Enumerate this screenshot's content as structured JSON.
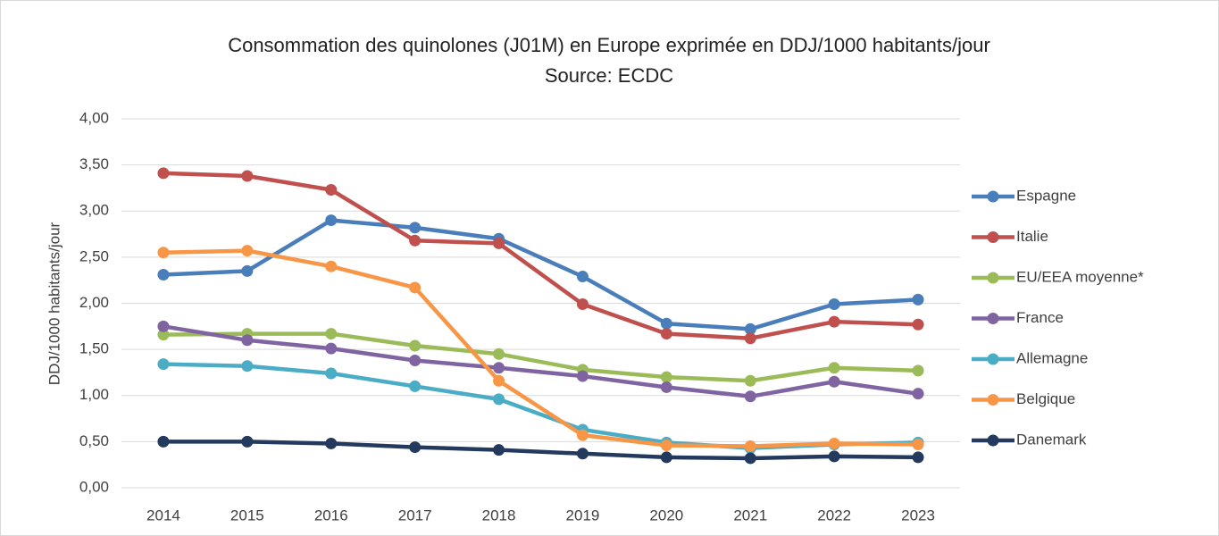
{
  "chart_data": {
    "type": "line",
    "title": "Consommation des quinolones (J01M) en Europe exprimée en DDJ/1000 habitants/jour",
    "subtitle": "Source: ECDC",
    "y_label": "DDJ/1000 habitants/jour",
    "categories": [
      "2014",
      "2015",
      "2016",
      "2017",
      "2018",
      "2019",
      "2020",
      "2021",
      "2022",
      "2023"
    ],
    "series": [
      {
        "name": "Espagne",
        "color": "#4a7ebb",
        "values": [
          2.31,
          2.35,
          2.9,
          2.82,
          2.7,
          2.29,
          1.78,
          1.72,
          1.99,
          2.04
        ]
      },
      {
        "name": "Italie",
        "color": "#c0504d",
        "values": [
          3.41,
          3.38,
          3.23,
          2.68,
          2.65,
          1.99,
          1.67,
          1.62,
          1.8,
          1.77
        ]
      },
      {
        "name": "EU/EEA moyenne*",
        "color": "#9bbb59",
        "values": [
          1.66,
          1.67,
          1.67,
          1.54,
          1.45,
          1.28,
          1.2,
          1.16,
          1.3,
          1.27
        ]
      },
      {
        "name": "France",
        "color": "#8064a2",
        "values": [
          1.75,
          1.6,
          1.51,
          1.38,
          1.3,
          1.21,
          1.09,
          0.99,
          1.15,
          1.02
        ]
      },
      {
        "name": "Allemagne",
        "color": "#4bacc6",
        "values": [
          1.34,
          1.32,
          1.24,
          1.1,
          0.96,
          0.63,
          0.49,
          0.43,
          0.47,
          0.49
        ]
      },
      {
        "name": "Belgique",
        "color": "#f79646",
        "values": [
          2.55,
          2.57,
          2.4,
          2.17,
          1.16,
          0.57,
          0.46,
          0.45,
          0.48,
          0.47
        ]
      },
      {
        "name": "Danemark",
        "color": "#23395d",
        "values": [
          0.5,
          0.5,
          0.48,
          0.44,
          0.41,
          0.37,
          0.33,
          0.32,
          0.34,
          0.33
        ]
      }
    ],
    "ylim": [
      0,
      4
    ],
    "yticks": [
      {
        "value": 0,
        "label": "0,00"
      },
      {
        "value": 0.5,
        "label": "0,50"
      },
      {
        "value": 1,
        "label": "1,00"
      },
      {
        "value": 1.5,
        "label": "1,50"
      },
      {
        "value": 2,
        "label": "2,00"
      },
      {
        "value": 2.5,
        "label": "2,50"
      },
      {
        "value": 3,
        "label": "3,00"
      },
      {
        "value": 3.5,
        "label": "3,50"
      },
      {
        "value": 4,
        "label": "4,00"
      }
    ],
    "grid": true,
    "legend": "right"
  }
}
